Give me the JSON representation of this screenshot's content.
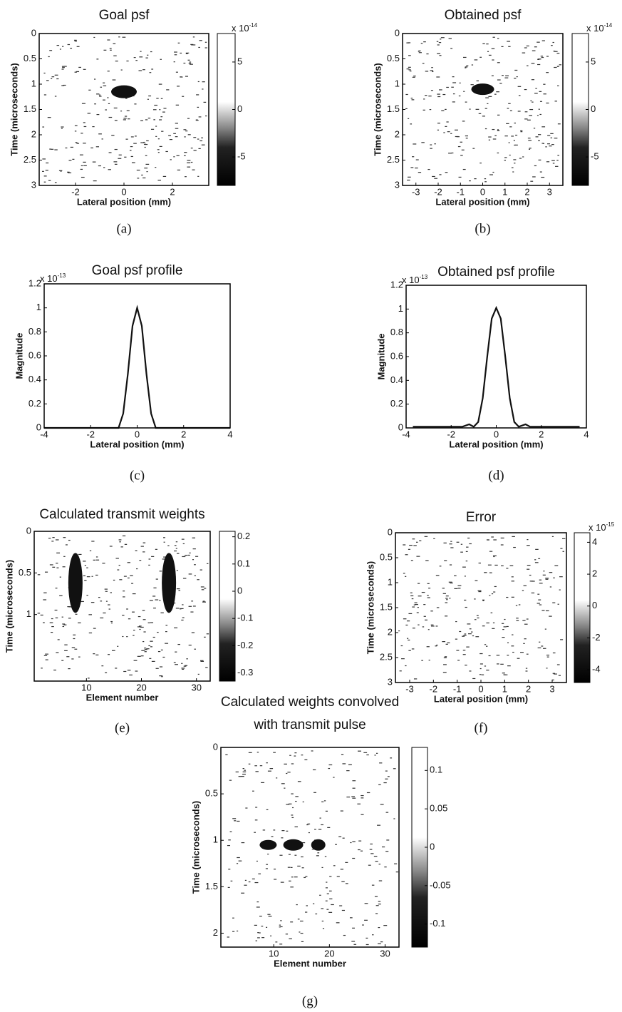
{
  "chart_data": [
    {
      "type": "image",
      "title": "Goal psf",
      "xlabel": "Lateral position (mm)",
      "ylabel": "Time (microseconds)",
      "label": "(a)",
      "xlim": [
        -3.5,
        3.5
      ],
      "xticks": [
        -2,
        0,
        2
      ],
      "ylim": [
        0,
        3
      ],
      "yticks": [
        0,
        0.5,
        1,
        1.5,
        2,
        2.5,
        3
      ],
      "yreverse": true,
      "clim": [
        -8,
        8
      ],
      "cticks": [
        5,
        0,
        -5
      ],
      "cexp": {
        "base": "x 10",
        "power": "-14"
      }
    },
    {
      "type": "image",
      "title": "Obtained psf",
      "xlabel": "Lateral position (mm)",
      "ylabel": "Time (microseconds)",
      "label": "(b)",
      "xlim": [
        -3.6,
        3.6
      ],
      "xticks": [
        -3,
        -2,
        -1,
        0,
        1,
        2,
        3
      ],
      "ylim": [
        0,
        3
      ],
      "yticks": [
        0,
        0.5,
        1,
        1.5,
        2,
        2.5,
        3
      ],
      "yreverse": true,
      "clim": [
        -8,
        8
      ],
      "cticks": [
        5,
        0,
        -5
      ],
      "cexp": {
        "base": "x 10",
        "power": "-14"
      }
    },
    {
      "type": "line",
      "title": "Goal psf profile",
      "xlabel": "Lateral position (mm)",
      "ylabel": "Magnitude",
      "label": "(c)",
      "xlim": [
        -4,
        4
      ],
      "xticks": [
        -4,
        -2,
        0,
        2,
        4
      ],
      "ylim": [
        0,
        1.2
      ],
      "yticks": [
        0,
        0.2,
        0.4,
        0.6,
        0.8,
        1,
        1.2
      ],
      "yexp": {
        "base": "x 10",
        "power": "-13"
      },
      "series": [
        {
          "color": "#111",
          "x": [
            -4,
            -1,
            -0.8,
            -0.6,
            -0.4,
            -0.2,
            0,
            0.2,
            0.4,
            0.6,
            0.8,
            1,
            4
          ],
          "values": [
            0,
            0,
            0,
            0.12,
            0.45,
            0.85,
            1,
            0.85,
            0.45,
            0.12,
            0,
            0,
            0
          ]
        }
      ]
    },
    {
      "type": "line",
      "title": "Obtained psf profile",
      "xlabel": "Lateral position (mm)",
      "ylabel": "Magnitude",
      "label": "(d)",
      "xlim": [
        -4,
        4
      ],
      "xticks": [
        -4,
        -2,
        0,
        2,
        4
      ],
      "ylim": [
        0,
        1.2
      ],
      "yticks": [
        0,
        0.2,
        0.4,
        0.6,
        0.8,
        1,
        1.2
      ],
      "yexp": {
        "base": "x 10",
        "power": "-13"
      },
      "series": [
        {
          "color": "#111",
          "x": [
            -3.7,
            -3,
            -2,
            -1.5,
            -1.2,
            -1,
            -0.8,
            -0.6,
            -0.4,
            -0.2,
            0,
            0.2,
            0.4,
            0.6,
            0.8,
            1,
            1.3,
            1.5,
            2,
            3,
            3.7
          ],
          "values": [
            0.01,
            0.01,
            0.01,
            0.01,
            0.03,
            0.01,
            0.05,
            0.25,
            0.6,
            0.92,
            1.01,
            0.92,
            0.6,
            0.25,
            0.05,
            0.01,
            0.03,
            0.01,
            0.01,
            0.01,
            0.01
          ]
        }
      ]
    },
    {
      "type": "image",
      "title": "Calculated transmit weights",
      "xlabel": "Element number",
      "ylabel": "Time (microseconds)",
      "label": "(e)",
      "xlim": [
        0.5,
        32.5
      ],
      "xticks": [
        10,
        20,
        30
      ],
      "ylim": [
        0,
        1.8
      ],
      "yticks": [
        0,
        0.5,
        1
      ],
      "yreverse": true,
      "clim": [
        -0.33,
        0.22
      ],
      "cticks": [
        0.2,
        0.1,
        0,
        -0.1,
        -0.2,
        -0.3
      ]
    },
    {
      "type": "image",
      "title": "Error",
      "xlabel": "Lateral position (mm)",
      "ylabel": "Time (microseconds)",
      "label": "(f)",
      "xlim": [
        -3.6,
        3.6
      ],
      "xticks": [
        -3,
        -2,
        -1,
        0,
        1,
        2,
        3
      ],
      "ylim": [
        0,
        3
      ],
      "yticks": [
        0,
        0.5,
        1,
        1.5,
        2,
        2.5,
        3
      ],
      "yreverse": true,
      "clim": [
        -4.8,
        4.6
      ],
      "cticks": [
        4,
        2,
        0,
        -2,
        -4
      ],
      "cexp": {
        "base": "x 10",
        "power": "-15"
      }
    },
    {
      "type": "image",
      "title": [
        "Calculated weights convolved",
        "with transmit pulse"
      ],
      "xlabel": "Element number",
      "ylabel": "Time (microseconds)",
      "label": "(g)",
      "xlim": [
        0.5,
        32.5
      ],
      "xticks": [
        10,
        20,
        30
      ],
      "ylim": [
        0,
        2.15
      ],
      "yticks": [
        0,
        0.5,
        1,
        1.5,
        2
      ],
      "yreverse": true,
      "clim": [
        -0.13,
        0.13
      ],
      "cticks": [
        0.1,
        0.05,
        0,
        -0.05,
        -0.1
      ]
    }
  ]
}
